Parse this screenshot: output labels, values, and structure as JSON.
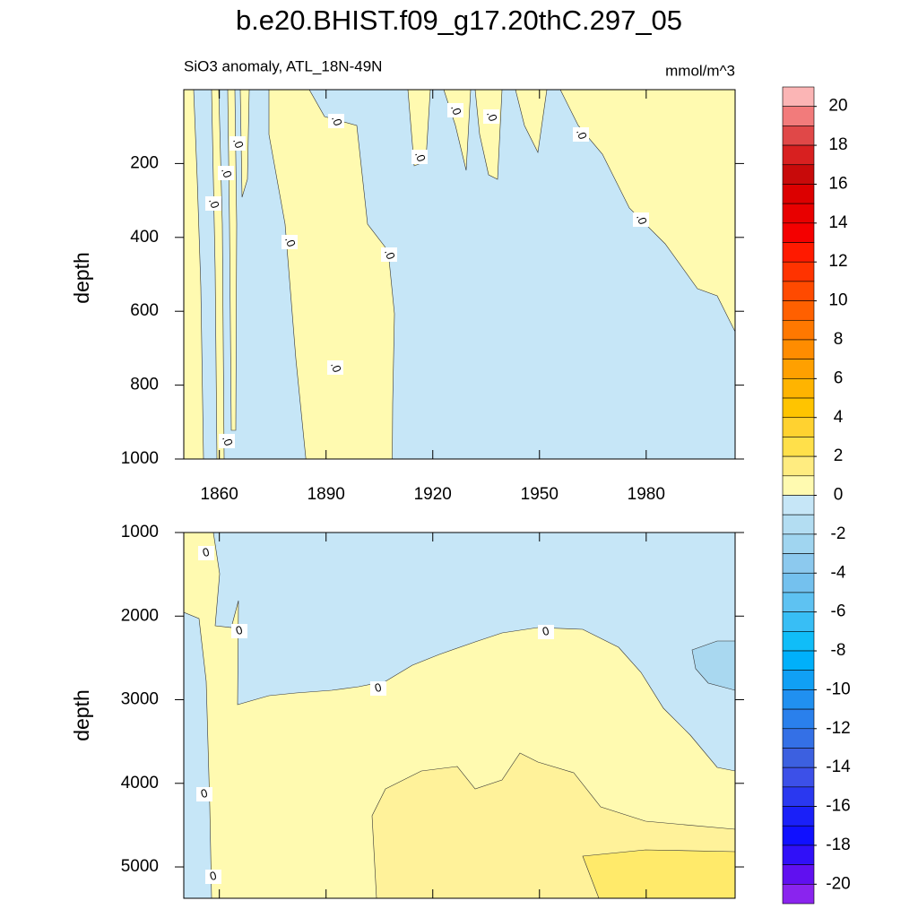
{
  "chart_data": [
    {
      "type": "contour",
      "title": "b.e20.BHIST.f09_g17.20thC.297_05",
      "subtitle": "SiO3 anomaly, ATL_18N-49N",
      "units": "mmol/m^3",
      "ylabel": "depth",
      "xlim": [
        1850,
        2005
      ],
      "xticks": [
        1860,
        1890,
        1920,
        1950,
        1980
      ],
      "ylim": [
        1000,
        0
      ],
      "yticks": [
        200,
        400,
        600,
        800,
        1000
      ],
      "contour_label": ".0"
    },
    {
      "type": "contour",
      "ylabel": "depth",
      "xlim": [
        1850,
        2005
      ],
      "xticks": [
        1860,
        1890,
        1920,
        1950,
        1980
      ],
      "ylim": [
        5375,
        1000
      ],
      "yticks": [
        1000,
        2000,
        3000,
        4000,
        5000
      ],
      "contour_label": "0"
    },
    {
      "type": "colorbar",
      "lim": [
        -21,
        21
      ],
      "ticks": [
        20,
        18,
        16,
        14,
        12,
        10,
        8,
        6,
        4,
        2,
        0,
        -2,
        -4,
        -6,
        -8,
        -10,
        -12,
        -14,
        -16,
        -18,
        -20
      ],
      "colors": [
        "#fbb5b5",
        "#f27b7b",
        "#e04848",
        "#d82020",
        "#c80a0a",
        "#dc0000",
        "#e80000",
        "#f40000",
        "#ff1a00",
        "#ff3300",
        "#ff4a00",
        "#ff6000",
        "#ff7800",
        "#ff8c00",
        "#ffa000",
        "#ffb400",
        "#ffc400",
        "#ffd230",
        "#ffe04a",
        "#ffec80",
        "#fffab0",
        "#c6e6f7",
        "#b3ddf2",
        "#a0d5f0",
        "#8cc9ee",
        "#74c1ee",
        "#5ec2f2",
        "#38bef5",
        "#10bdf8",
        "#00b0fa",
        "#10a0f5",
        "#2090f0",
        "#2a80ec",
        "#3470e6",
        "#3c60e0",
        "#3c50e8",
        "#2a38f0",
        "#1a20f8",
        "#1010ff",
        "#3010f8",
        "#6010f0",
        "#8a24ee"
      ]
    }
  ]
}
